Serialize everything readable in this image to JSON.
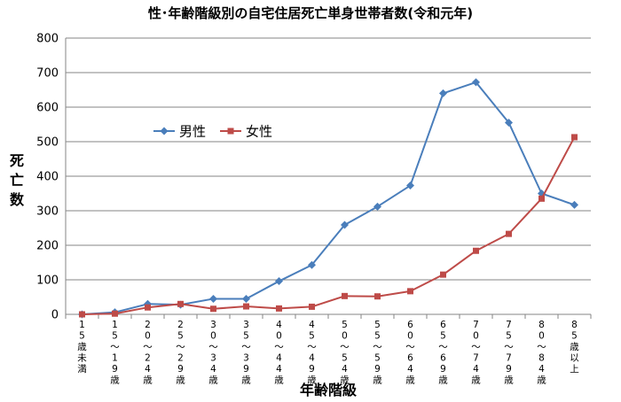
{
  "chart_data": {
    "type": "line",
    "title": "性･年齢階級別の自宅住居死亡単身世帯者数(令和元年)",
    "xlabel": "年齢階級",
    "ylabel": "死亡数",
    "ylim": [
      0,
      800
    ],
    "yticks": [
      0,
      100,
      200,
      300,
      400,
      500,
      600,
      700,
      800
    ],
    "grid": true,
    "legend_position": "upper-left",
    "categories": [
      "15歳未満",
      "15～19歳",
      "20～24歳",
      "25～29歳",
      "30～34歳",
      "35～39歳",
      "40～44歳",
      "45～49歳",
      "50～54歳",
      "55～59歳",
      "60～64歳",
      "65～69歳",
      "70～74歳",
      "75～79歳",
      "80～84歳",
      "85歳以上"
    ],
    "series": [
      {
        "name": "男性",
        "color": "#4a7ebb",
        "marker": "diamond",
        "values": [
          0,
          6,
          30,
          28,
          45,
          45,
          96,
          143,
          259,
          312,
          373,
          640,
          672,
          555,
          350,
          317
        ]
      },
      {
        "name": "女性",
        "color": "#be4b48",
        "marker": "square",
        "values": [
          0,
          2,
          20,
          30,
          16,
          23,
          17,
          22,
          53,
          52,
          67,
          115,
          184,
          233,
          335,
          513
        ]
      }
    ]
  }
}
